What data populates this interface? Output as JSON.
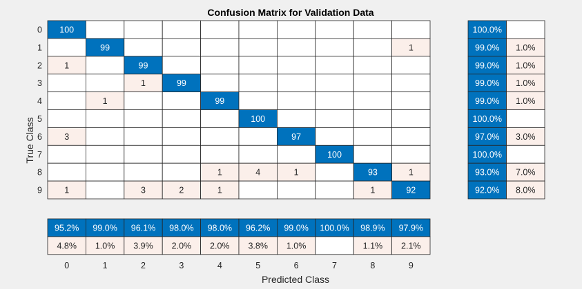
{
  "colors": {
    "background": "#f0f0f0",
    "strong": "#0072bd",
    "weak": "#fbefea",
    "empty": "#ffffff",
    "grid": "#262626",
    "text_dark": "#262626",
    "text_light": "#ffffff"
  },
  "chart_data": {
    "type": "heatmap",
    "title": "Confusion Matrix for Validation Data",
    "xlabel": "Predicted Class",
    "ylabel": "True Class",
    "classes": [
      "0",
      "1",
      "2",
      "3",
      "4",
      "5",
      "6",
      "7",
      "8",
      "9"
    ],
    "matrix": [
      [
        100,
        0,
        0,
        0,
        0,
        0,
        0,
        0,
        0,
        0
      ],
      [
        0,
        99,
        0,
        0,
        0,
        0,
        0,
        0,
        0,
        1
      ],
      [
        1,
        0,
        99,
        0,
        0,
        0,
        0,
        0,
        0,
        0
      ],
      [
        0,
        0,
        1,
        99,
        0,
        0,
        0,
        0,
        0,
        0
      ],
      [
        0,
        1,
        0,
        0,
        99,
        0,
        0,
        0,
        0,
        0
      ],
      [
        0,
        0,
        0,
        0,
        0,
        100,
        0,
        0,
        0,
        0
      ],
      [
        3,
        0,
        0,
        0,
        0,
        0,
        97,
        0,
        0,
        0
      ],
      [
        0,
        0,
        0,
        0,
        0,
        0,
        0,
        100,
        0,
        0
      ],
      [
        0,
        0,
        0,
        0,
        1,
        4,
        1,
        0,
        93,
        1
      ],
      [
        1,
        0,
        3,
        2,
        1,
        0,
        0,
        0,
        1,
        92
      ]
    ],
    "row_summary": {
      "correct": [
        "100.0%",
        "99.0%",
        "99.0%",
        "99.0%",
        "99.0%",
        "100.0%",
        "97.0%",
        "100.0%",
        "93.0%",
        "92.0%"
      ],
      "incorrect": [
        "",
        "1.0%",
        "1.0%",
        "1.0%",
        "1.0%",
        "",
        "3.0%",
        "",
        "7.0%",
        "8.0%"
      ]
    },
    "column_summary": {
      "correct": [
        "95.2%",
        "99.0%",
        "96.1%",
        "98.0%",
        "98.0%",
        "96.2%",
        "99.0%",
        "100.0%",
        "98.9%",
        "97.9%"
      ],
      "incorrect": [
        "4.8%",
        "1.0%",
        "3.9%",
        "2.0%",
        "2.0%",
        "3.8%",
        "1.0%",
        "",
        "1.1%",
        "2.1%"
      ]
    }
  }
}
